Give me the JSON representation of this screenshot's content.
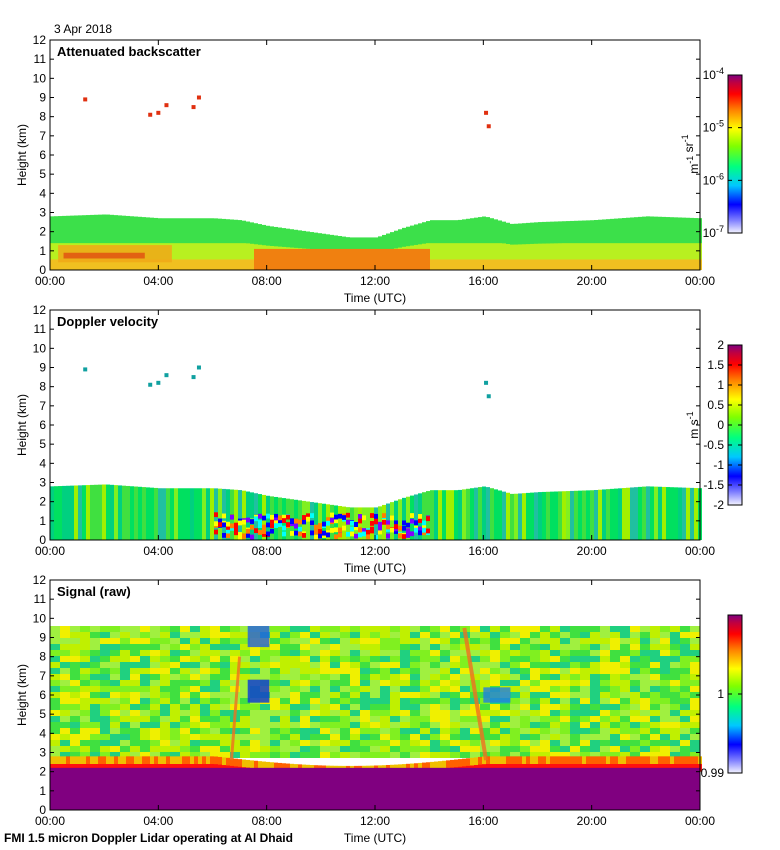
{
  "date_label": "3 Apr 2018",
  "footer": "FMI 1.5 micron Doppler Lidar operating at Al Dhaid",
  "chart_data": [
    {
      "type": "heatmap",
      "title": "Attenuated backscatter",
      "xlabel": "Time (UTC)",
      "ylabel": "Height (km)",
      "xticks": [
        "00:00",
        "04:00",
        "08:00",
        "12:00",
        "16:00",
        "20:00",
        "00:00"
      ],
      "yticks": [
        "0",
        "1",
        "2",
        "3",
        "4",
        "5",
        "6",
        "7",
        "8",
        "9",
        "10",
        "11",
        "12"
      ],
      "xlim": [
        0,
        24
      ],
      "ylim": [
        0,
        12
      ],
      "colorbar": {
        "label": "m-1 sr-1",
        "ticks": [
          "10-7",
          "10-6",
          "10-5",
          "10-4"
        ],
        "range": [
          -7,
          -4
        ],
        "scale": "log"
      },
      "layer_top_km": [
        [
          0,
          2.8
        ],
        [
          2,
          2.9
        ],
        [
          4,
          2.7
        ],
        [
          6,
          2.7
        ],
        [
          7,
          2.6
        ],
        [
          8,
          2.3
        ],
        [
          9,
          2.1
        ],
        [
          10,
          1.9
        ],
        [
          11,
          1.7
        ],
        [
          12,
          1.7
        ],
        [
          13,
          2.2
        ],
        [
          14,
          2.6
        ],
        [
          15,
          2.6
        ],
        [
          16,
          2.8
        ],
        [
          17,
          2.4
        ],
        [
          18,
          2.5
        ],
        [
          20,
          2.6
        ],
        [
          22,
          2.8
        ],
        [
          24,
          2.7
        ]
      ],
      "clouds": [
        {
          "t": 1.3,
          "h": 8.9
        },
        {
          "t": 3.7,
          "h": 8.1
        },
        {
          "t": 4.0,
          "h": 8.2
        },
        {
          "t": 4.3,
          "h": 8.6
        },
        {
          "t": 5.3,
          "h": 8.5
        },
        {
          "t": 5.5,
          "h": 9.0
        },
        {
          "t": 16.1,
          "h": 8.2
        },
        {
          "t": 16.2,
          "h": 7.5
        }
      ]
    },
    {
      "type": "heatmap",
      "title": "Doppler velocity",
      "xlabel": "Time (UTC)",
      "ylabel": "Height (km)",
      "xticks": [
        "00:00",
        "04:00",
        "08:00",
        "12:00",
        "16:00",
        "20:00",
        "00:00"
      ],
      "yticks": [
        "0",
        "1",
        "2",
        "3",
        "4",
        "5",
        "6",
        "7",
        "8",
        "9",
        "10",
        "11",
        "12"
      ],
      "xlim": [
        0,
        24
      ],
      "ylim": [
        0,
        12
      ],
      "colorbar": {
        "label": "m s-1",
        "ticks": [
          "-2",
          "-1.5",
          "-1",
          "-0.5",
          "0",
          "0.5",
          "1",
          "1.5",
          "2"
        ],
        "range": [
          -2,
          2
        ],
        "scale": "linear"
      }
    },
    {
      "type": "heatmap",
      "title": "Signal (raw)",
      "xlabel": "Time (UTC)",
      "ylabel": "Height (km)",
      "xticks": [
        "00:00",
        "04:00",
        "08:00",
        "12:00",
        "16:00",
        "20:00",
        "00:00"
      ],
      "yticks": [
        "0",
        "1",
        "2",
        "3",
        "4",
        "5",
        "6",
        "7",
        "8",
        "9",
        "10",
        "11",
        "12"
      ],
      "xlim": [
        0,
        24
      ],
      "ylim": [
        0,
        12
      ],
      "data_top_km": 9.6,
      "colorbar": {
        "label": "",
        "ticks": [
          "0.99",
          "1"
        ],
        "range": [
          0.99,
          1.01
        ],
        "scale": "linear"
      }
    }
  ]
}
